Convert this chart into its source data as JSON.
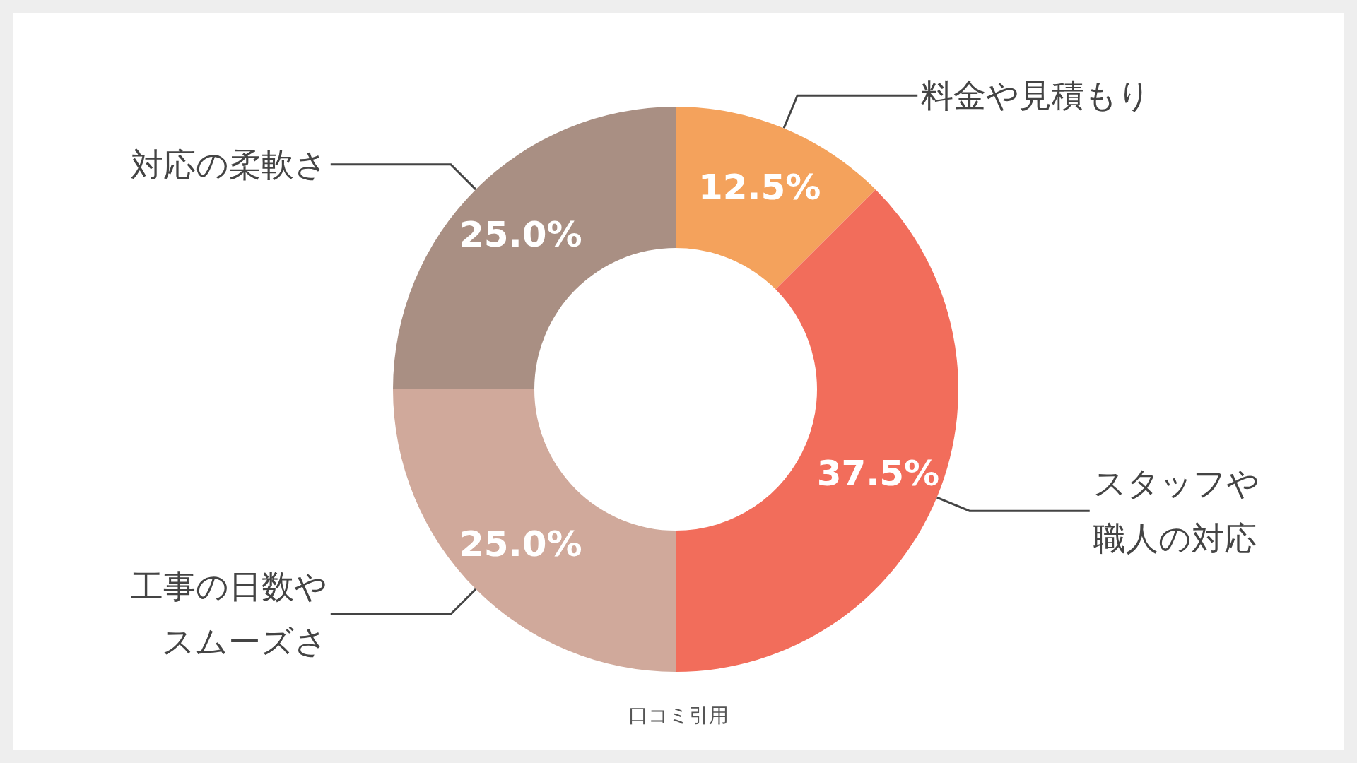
{
  "chart_data": {
    "type": "donut",
    "categories": [
      "料金や見積もり",
      "スタッフや職人の対応",
      "工事の日数やスムーズさ",
      "対応の柔軟さ"
    ],
    "values": [
      12.5,
      37.5,
      25.0,
      25.0
    ],
    "value_labels": [
      "12.5%",
      "37.5%",
      "25.0%",
      "25.0%"
    ],
    "colors": [
      "#f4a25c",
      "#f26d5b",
      "#d0a99b",
      "#a98f83"
    ],
    "legend": false,
    "annotations": [
      "口コミ引用"
    ]
  }
}
